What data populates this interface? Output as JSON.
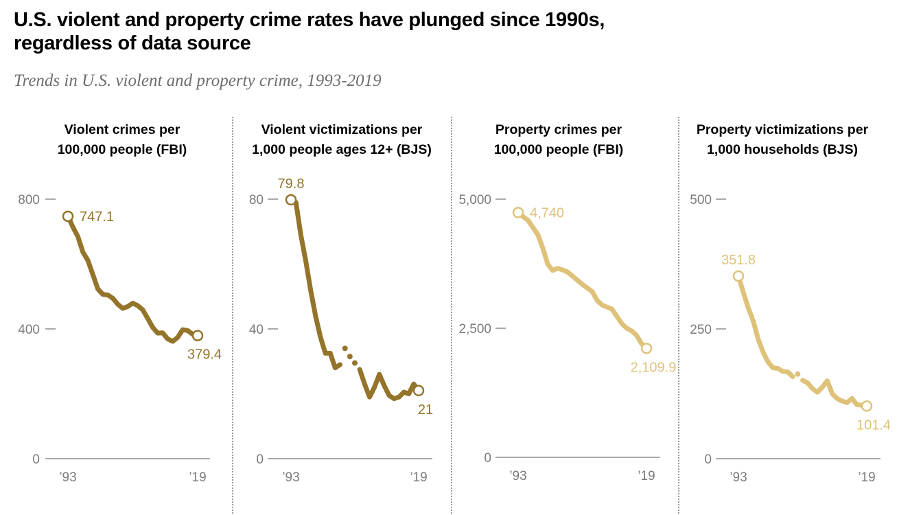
{
  "header": {
    "title_line1": "U.S. violent and property crime rates have plunged since 1990s,",
    "title_line2": "regardless of data source",
    "subtitle": "Trends in U.S. violent and property crime, 1993-2019"
  },
  "colors": {
    "violent": "#94742a",
    "property": "#dfc27a",
    "axis": "#7b7b7b",
    "divider": "#9a9a9a"
  },
  "chart_data": [
    {
      "type": "line",
      "title_line1": "Violent crimes per",
      "title_line2": "100,000 people (FBI)",
      "series_color": "violent",
      "x": [
        1993,
        1994,
        1995,
        1996,
        1997,
        1998,
        1999,
        2000,
        2001,
        2002,
        2003,
        2004,
        2005,
        2006,
        2007,
        2008,
        2009,
        2010,
        2011,
        2012,
        2013,
        2014,
        2015,
        2016,
        2017,
        2018,
        2019
      ],
      "values": [
        747.1,
        713.6,
        684.5,
        636.6,
        611.0,
        567.6,
        523.0,
        506.5,
        504.5,
        494.4,
        475.8,
        463.2,
        469.0,
        479.3,
        471.8,
        458.6,
        431.9,
        404.5,
        387.1,
        387.8,
        369.1,
        361.6,
        373.7,
        397.5,
        394.9,
        383.4,
        379.4
      ],
      "ylim": [
        0,
        800
      ],
      "yticks": [
        0,
        400,
        800
      ],
      "ytick_labels": [
        "0",
        "400",
        "800"
      ],
      "xtick_labels": [
        "’93",
        "’19"
      ],
      "start_label": "747.1",
      "end_label": "379.4",
      "gaps": []
    },
    {
      "type": "line",
      "title_line1": "Violent victimizations per",
      "title_line2": "1,000 people ages 12+ (BJS)",
      "series_color": "violent",
      "x": [
        1993,
        1994,
        1995,
        1996,
        1997,
        1998,
        1999,
        2000,
        2001,
        2002,
        2003,
        2004,
        2005,
        2006,
        2007,
        2008,
        2009,
        2010,
        2011,
        2012,
        2013,
        2014,
        2015,
        2016,
        2017,
        2018,
        2019
      ],
      "values": [
        79.8,
        79.0,
        69.0,
        61.0,
        52.0,
        44.0,
        37.5,
        32.5,
        32.5,
        28.0,
        29.0,
        34.0,
        31.5,
        29.5,
        27.5,
        23.0,
        19.0,
        22.0,
        26.0,
        22.5,
        19.5,
        18.5,
        19.0,
        20.5,
        20.0,
        23.0,
        21.0
      ],
      "ylim": [
        0,
        80
      ],
      "yticks": [
        0,
        40,
        80
      ],
      "ytick_labels": [
        "0",
        "40",
        "80"
      ],
      "xtick_labels": [
        "’93",
        "’19"
      ],
      "start_label": "79.8",
      "end_label": "21",
      "gaps": [
        2004,
        2005,
        2006
      ]
    },
    {
      "type": "line",
      "title_line1": "Property crimes per",
      "title_line2": "100,000 people (FBI)",
      "series_color": "property",
      "x": [
        1993,
        1994,
        1995,
        1996,
        1997,
        1998,
        1999,
        2000,
        2001,
        2002,
        2003,
        2004,
        2005,
        2006,
        2007,
        2008,
        2009,
        2010,
        2011,
        2012,
        2013,
        2014,
        2015,
        2016,
        2017,
        2018,
        2019
      ],
      "values": [
        4740,
        4660,
        4590,
        4450,
        4310,
        4050,
        3740,
        3620,
        3660,
        3630,
        3590,
        3510,
        3430,
        3350,
        3280,
        3210,
        3040,
        2950,
        2910,
        2870,
        2730,
        2590,
        2500,
        2450,
        2360,
        2200,
        2109.9
      ],
      "ylim": [
        0,
        5000
      ],
      "yticks": [
        0,
        2500,
        5000
      ],
      "ytick_labels": [
        "0",
        "2,500",
        "5,000"
      ],
      "xtick_labels": [
        "’93",
        "’19"
      ],
      "start_label": "4,740",
      "end_label": "2,109.9",
      "gaps": []
    },
    {
      "type": "line",
      "title_line1": "Property victimizations per",
      "title_line2": "1,000 households (BJS)",
      "series_color": "property",
      "x": [
        1993,
        1994,
        1995,
        1996,
        1997,
        1998,
        1999,
        2000,
        2001,
        2002,
        2003,
        2004,
        2005,
        2006,
        2007,
        2008,
        2009,
        2010,
        2011,
        2012,
        2013,
        2014,
        2015,
        2016,
        2017,
        2018,
        2019
      ],
      "values": [
        351.8,
        320.0,
        290.0,
        265.0,
        230.0,
        205.0,
        186.0,
        175.0,
        174.0,
        168.0,
        167.0,
        158.0,
        163.0,
        151.0,
        146.0,
        135.0,
        128.0,
        138.0,
        150.0,
        125.0,
        116.0,
        111.0,
        108.0,
        116.0,
        104.0,
        103.0,
        101.4
      ],
      "ylim": [
        0,
        500
      ],
      "yticks": [
        0,
        250,
        500
      ],
      "ytick_labels": [
        "0",
        "250",
        "500"
      ],
      "xtick_labels": [
        "’93",
        "’19"
      ],
      "start_label": "351.8",
      "end_label": "101.4",
      "gaps": [
        2005
      ]
    }
  ]
}
